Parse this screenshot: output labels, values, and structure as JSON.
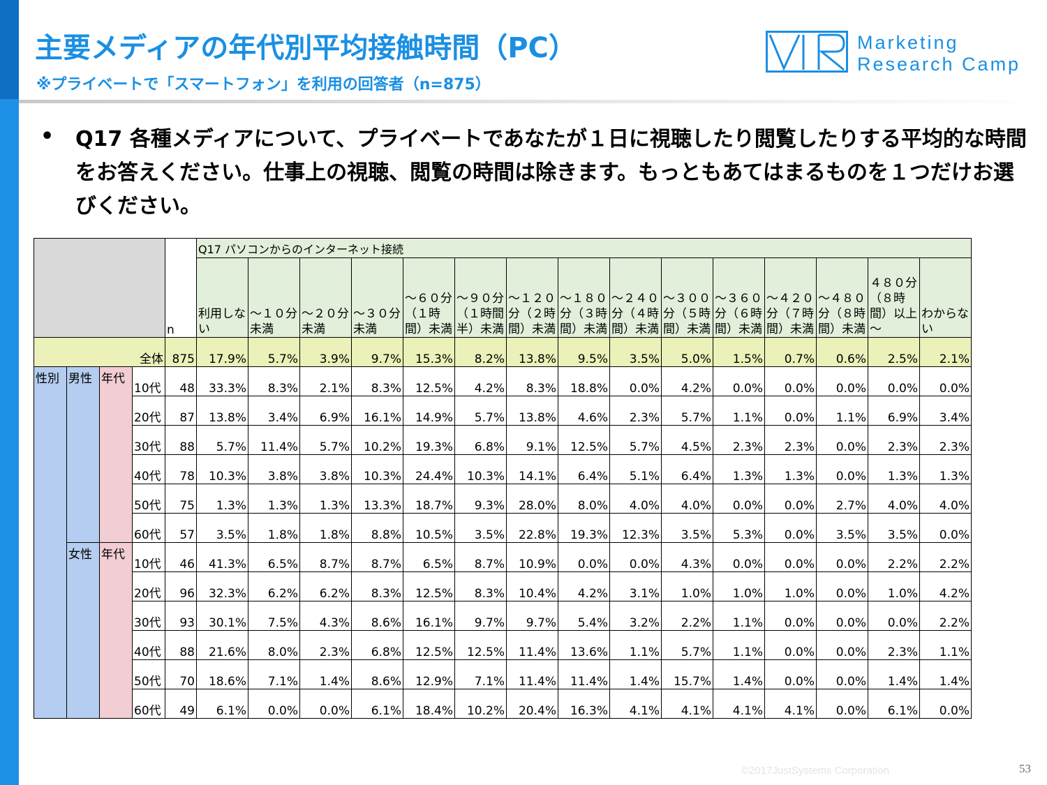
{
  "header": {
    "title": "主要メディアの年代別平均接触時間（PC）",
    "subtitle": "※プライベートで「スマートフォン」を利用の回答者（n=875）"
  },
  "logo": {
    "line1": "Marketing",
    "line2": "Research Camp"
  },
  "question": {
    "bullet": "•",
    "text": "Q17 各種メディアについて、プライベートであなたが１日に視聴したり閲覧したりする平均的な時間をお答えください。仕事上の視聴、閲覧の時間は除きます。もっともあてはまるものを１つだけお選びください。"
  },
  "table": {
    "question_header": "Q17 パソコンからのインターネット接続",
    "n_header": "n",
    "columns": [
      "利用しない",
      "～１０分未満",
      "～２０分未満",
      "～３０分未満",
      "～６０分（１時間）未満",
      "～９０分（１時間半）未満",
      "～１２０分（２時間）未満",
      "～１８０分（３時間）未満",
      "～２４０分（４時間）未満",
      "～３００分（５時間）未満",
      "～３６０分（６時間）未満",
      "～４２０分（７時間）未満",
      "～４８０分（８時間）未満",
      "４８０分（８時間）以上～",
      "わからない"
    ],
    "total": {
      "label": "全体",
      "n": "875",
      "values": [
        "17.9%",
        "5.7%",
        "3.9%",
        "9.7%",
        "15.3%",
        "8.2%",
        "13.8%",
        "9.5%",
        "3.5%",
        "5.0%",
        "1.5%",
        "0.7%",
        "0.6%",
        "2.5%",
        "2.1%"
      ]
    },
    "gender_label": "性別",
    "age_group_label": "年代",
    "groups": [
      {
        "gender": "男性",
        "rows": [
          {
            "age": "10代",
            "n": "48",
            "values": [
              "33.3%",
              "8.3%",
              "2.1%",
              "8.3%",
              "12.5%",
              "4.2%",
              "8.3%",
              "18.8%",
              "0.0%",
              "4.2%",
              "0.0%",
              "0.0%",
              "0.0%",
              "0.0%",
              "0.0%"
            ]
          },
          {
            "age": "20代",
            "n": "87",
            "values": [
              "13.8%",
              "3.4%",
              "6.9%",
              "16.1%",
              "14.9%",
              "5.7%",
              "13.8%",
              "4.6%",
              "2.3%",
              "5.7%",
              "1.1%",
              "0.0%",
              "1.1%",
              "6.9%",
              "3.4%"
            ]
          },
          {
            "age": "30代",
            "n": "88",
            "values": [
              "5.7%",
              "11.4%",
              "5.7%",
              "10.2%",
              "19.3%",
              "6.8%",
              "9.1%",
              "12.5%",
              "5.7%",
              "4.5%",
              "2.3%",
              "2.3%",
              "0.0%",
              "2.3%",
              "2.3%"
            ]
          },
          {
            "age": "40代",
            "n": "78",
            "values": [
              "10.3%",
              "3.8%",
              "3.8%",
              "10.3%",
              "24.4%",
              "10.3%",
              "14.1%",
              "6.4%",
              "5.1%",
              "6.4%",
              "1.3%",
              "1.3%",
              "0.0%",
              "1.3%",
              "1.3%"
            ]
          },
          {
            "age": "50代",
            "n": "75",
            "values": [
              "1.3%",
              "1.3%",
              "1.3%",
              "13.3%",
              "18.7%",
              "9.3%",
              "28.0%",
              "8.0%",
              "4.0%",
              "4.0%",
              "0.0%",
              "0.0%",
              "2.7%",
              "4.0%",
              "4.0%"
            ]
          },
          {
            "age": "60代",
            "n": "57",
            "values": [
              "3.5%",
              "1.8%",
              "1.8%",
              "8.8%",
              "10.5%",
              "3.5%",
              "22.8%",
              "19.3%",
              "12.3%",
              "3.5%",
              "5.3%",
              "0.0%",
              "3.5%",
              "3.5%",
              "0.0%"
            ]
          }
        ]
      },
      {
        "gender": "女性",
        "rows": [
          {
            "age": "10代",
            "n": "46",
            "values": [
              "41.3%",
              "6.5%",
              "8.7%",
              "8.7%",
              "6.5%",
              "8.7%",
              "10.9%",
              "0.0%",
              "0.0%",
              "4.3%",
              "0.0%",
              "0.0%",
              "0.0%",
              "2.2%",
              "2.2%"
            ]
          },
          {
            "age": "20代",
            "n": "96",
            "values": [
              "32.3%",
              "6.2%",
              "6.2%",
              "8.3%",
              "12.5%",
              "8.3%",
              "10.4%",
              "4.2%",
              "3.1%",
              "1.0%",
              "1.0%",
              "1.0%",
              "0.0%",
              "1.0%",
              "4.2%"
            ]
          },
          {
            "age": "30代",
            "n": "93",
            "values": [
              "30.1%",
              "7.5%",
              "4.3%",
              "8.6%",
              "16.1%",
              "9.7%",
              "9.7%",
              "5.4%",
              "3.2%",
              "2.2%",
              "1.1%",
              "0.0%",
              "0.0%",
              "0.0%",
              "2.2%"
            ]
          },
          {
            "age": "40代",
            "n": "88",
            "values": [
              "21.6%",
              "8.0%",
              "2.3%",
              "6.8%",
              "12.5%",
              "12.5%",
              "11.4%",
              "13.6%",
              "1.1%",
              "5.7%",
              "1.1%",
              "0.0%",
              "0.0%",
              "2.3%",
              "1.1%"
            ]
          },
          {
            "age": "50代",
            "n": "70",
            "values": [
              "18.6%",
              "7.1%",
              "1.4%",
              "8.6%",
              "12.9%",
              "7.1%",
              "11.4%",
              "11.4%",
              "1.4%",
              "15.7%",
              "1.4%",
              "0.0%",
              "0.0%",
              "1.4%",
              "1.4%"
            ]
          },
          {
            "age": "60代",
            "n": "49",
            "values": [
              "6.1%",
              "0.0%",
              "0.0%",
              "6.1%",
              "18.4%",
              "10.2%",
              "20.4%",
              "16.3%",
              "4.1%",
              "4.1%",
              "4.1%",
              "4.1%",
              "0.0%",
              "6.1%",
              "0.0%"
            ]
          }
        ]
      }
    ]
  },
  "footer": {
    "copyright": "©2017JustSystems Corporation",
    "page_number": "53"
  }
}
